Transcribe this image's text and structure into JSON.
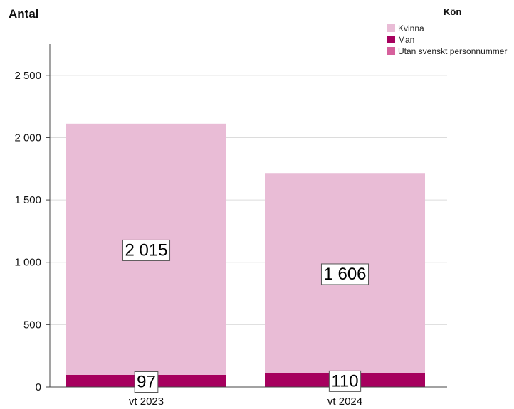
{
  "chart_data": {
    "type": "bar",
    "stacked": true,
    "ylabel": "Antal",
    "categories": [
      "vt 2023",
      "vt 2024"
    ],
    "ylim": [
      0,
      2750
    ],
    "yticks": [
      0,
      500,
      1000,
      1500,
      2000,
      2500
    ],
    "ytick_labels": [
      "0",
      "500",
      "1 000",
      "1 500",
      "2 000",
      "2 500"
    ],
    "grid": "horizontal",
    "legend": {
      "title": "Kön",
      "placement": "top-right",
      "entries": [
        "Kvinna",
        "Man",
        "Utan svenskt personnummer"
      ]
    },
    "series": [
      {
        "name": "Man",
        "values": [
          97,
          110
        ],
        "labels": [
          "97",
          "110"
        ],
        "color": "#a6005e"
      },
      {
        "name": "Kvinna",
        "values": [
          2015,
          1606
        ],
        "labels": [
          "2 015",
          "1 606"
        ],
        "color": "#e9bcd6"
      },
      {
        "name": "Utan svenskt personnummer",
        "values": [
          0,
          0
        ],
        "color": "#d6609c"
      }
    ]
  }
}
